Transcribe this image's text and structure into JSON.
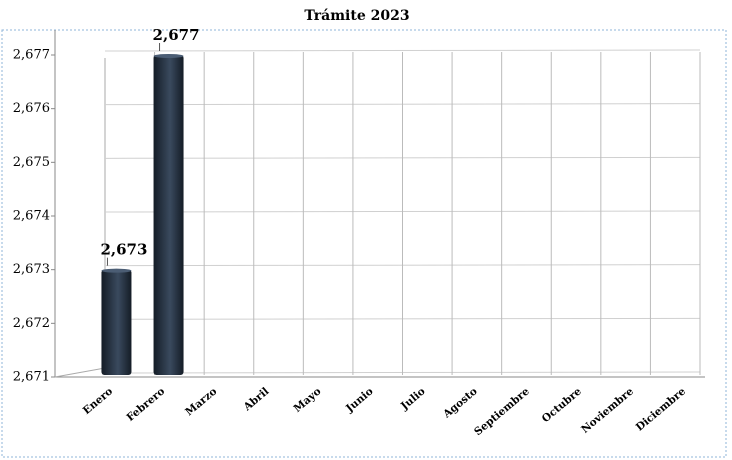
{
  "chart_data": {
    "type": "bar",
    "title": "Trámite 2023",
    "categories": [
      "Enero",
      "Febrero",
      "Marzo",
      "Abril",
      "Mayo",
      "Junio",
      "Julio",
      "Agosto",
      "Septiembre",
      "Octubre",
      "Noviembre",
      "Diciembre"
    ],
    "values": [
      2673,
      2677,
      null,
      null,
      null,
      null,
      null,
      null,
      null,
      null,
      null,
      null
    ],
    "value_labels": [
      "2,673",
      "2,677",
      null,
      null,
      null,
      null,
      null,
      null,
      null,
      null,
      null,
      null
    ],
    "color": "#263242",
    "ylim": [
      2671,
      2677
    ],
    "yticks": [
      {
        "value": 2671,
        "label": "2,671"
      },
      {
        "value": 2672,
        "label": "2,672"
      },
      {
        "value": 2673,
        "label": "2,673"
      },
      {
        "value": 2674,
        "label": "2,674"
      },
      {
        "value": 2675,
        "label": "2,675"
      },
      {
        "value": 2676,
        "label": "2,676"
      },
      {
        "value": 2677,
        "label": "2,677"
      }
    ],
    "grid": true
  }
}
